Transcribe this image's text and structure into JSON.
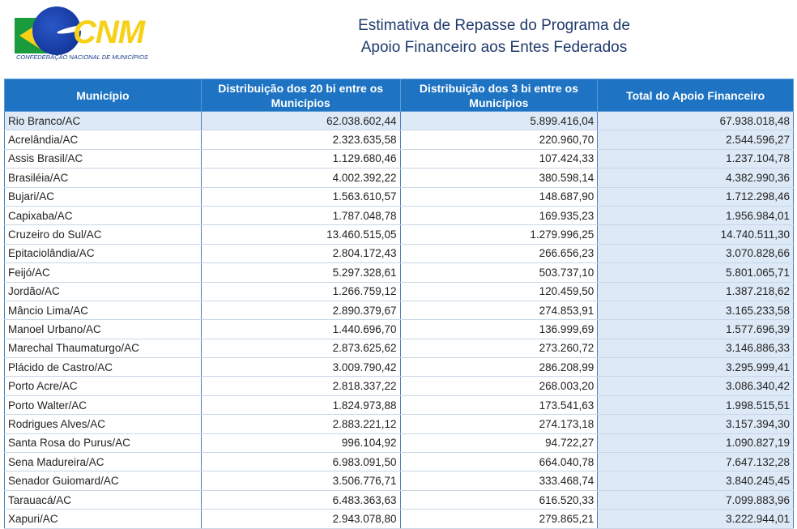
{
  "logo": {
    "text": "CNM",
    "subtitle": "CONFEDERAÇÃO NACIONAL DE MUNICÍPIOS",
    "colors": {
      "green": "#1a9b3c",
      "yellow": "#f7d117",
      "blue": "#0b2a8a"
    }
  },
  "title": {
    "line1": "Estimativa de Repasse do Programa de",
    "line2": "Apoio Financeiro aos Entes Federados"
  },
  "table": {
    "headers": [
      "Município",
      "Distribuição dos 20 bi entre os Municípios",
      "Distribuição dos 3 bi entre os Municípios",
      "Total do Apoio Financeiro"
    ],
    "header_color": "#1e73c3",
    "rows": [
      [
        "Rio Branco/AC",
        "62.038.602,44",
        "5.899.416,04",
        "67.938.018,48"
      ],
      [
        "Acrelândia/AC",
        "2.323.635,58",
        "220.960,70",
        "2.544.596,27"
      ],
      [
        "Assis Brasil/AC",
        "1.129.680,46",
        "107.424,33",
        "1.237.104,78"
      ],
      [
        "Brasiléia/AC",
        "4.002.392,22",
        "380.598,14",
        "4.382.990,36"
      ],
      [
        "Bujari/AC",
        "1.563.610,57",
        "148.687,90",
        "1.712.298,46"
      ],
      [
        "Capixaba/AC",
        "1.787.048,78",
        "169.935,23",
        "1.956.984,01"
      ],
      [
        "Cruzeiro do Sul/AC",
        "13.460.515,05",
        "1.279.996,25",
        "14.740.511,30"
      ],
      [
        "Epitaciolândia/AC",
        "2.804.172,43",
        "266.656,23",
        "3.070.828,66"
      ],
      [
        "Feijó/AC",
        "5.297.328,61",
        "503.737,10",
        "5.801.065,71"
      ],
      [
        "Jordão/AC",
        "1.266.759,12",
        "120.459,50",
        "1.387.218,62"
      ],
      [
        "Mâncio Lima/AC",
        "2.890.379,67",
        "274.853,91",
        "3.165.233,58"
      ],
      [
        "Manoel Urbano/AC",
        "1.440.696,70",
        "136.999,69",
        "1.577.696,39"
      ],
      [
        "Marechal Thaumaturgo/AC",
        "2.873.625,62",
        "273.260,72",
        "3.146.886,33"
      ],
      [
        "Plácido de Castro/AC",
        "3.009.790,42",
        "286.208,99",
        "3.295.999,41"
      ],
      [
        "Porto Acre/AC",
        "2.818.337,22",
        "268.003,20",
        "3.086.340,42"
      ],
      [
        "Porto Walter/AC",
        "1.824.973,88",
        "173.541,63",
        "1.998.515,51"
      ],
      [
        "Rodrigues Alves/AC",
        "2.883.221,12",
        "274.173,18",
        "3.157.394,30"
      ],
      [
        "Santa Rosa do Purus/AC",
        "996.104,92",
        "94.722,27",
        "1.090.827,19"
      ],
      [
        "Sena Madureira/AC",
        "6.983.091,50",
        "664.040,78",
        "7.647.132,28"
      ],
      [
        "Senador Guiomard/AC",
        "3.506.776,71",
        "333.468,74",
        "3.840.245,45"
      ],
      [
        "Tarauacá/AC",
        "6.483.363,63",
        "616.520,33",
        "7.099.883,96"
      ],
      [
        "Xapuri/AC",
        "2.943.078,80",
        "279.865,21",
        "3.222.944,01"
      ]
    ]
  }
}
